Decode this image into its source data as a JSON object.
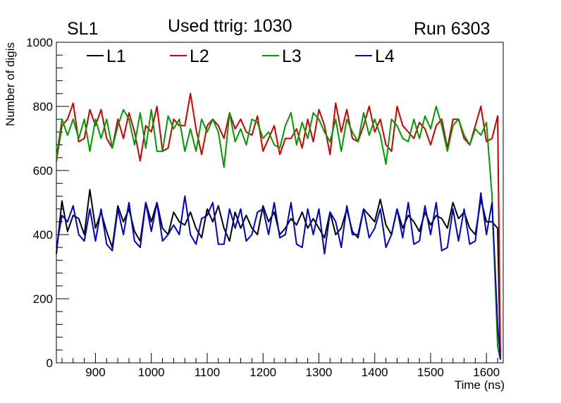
{
  "header": {
    "left": "SL1",
    "center": "Used ttrig: 1030",
    "right": "Run 6303"
  },
  "chart_data": {
    "type": "line",
    "title": "Used ttrig: 1030",
    "xlabel": "Time (ns)",
    "ylabel": "Number of digis",
    "xlim": [
      830,
      1630
    ],
    "ylim": [
      0,
      1000
    ],
    "xticks": [
      900,
      1000,
      1100,
      1200,
      1300,
      1400,
      1500,
      1600
    ],
    "yticks": [
      0,
      200,
      400,
      600,
      800,
      1000
    ],
    "legend_position": "top",
    "grid": false,
    "x": [
      830,
      840,
      850,
      860,
      870,
      880,
      890,
      900,
      910,
      920,
      930,
      940,
      950,
      960,
      970,
      980,
      990,
      1000,
      1010,
      1020,
      1030,
      1040,
      1050,
      1060,
      1070,
      1080,
      1090,
      1100,
      1110,
      1120,
      1130,
      1140,
      1150,
      1160,
      1170,
      1180,
      1190,
      1200,
      1210,
      1220,
      1230,
      1240,
      1250,
      1260,
      1270,
      1280,
      1290,
      1300,
      1310,
      1320,
      1330,
      1340,
      1350,
      1360,
      1370,
      1380,
      1390,
      1400,
      1410,
      1420,
      1430,
      1440,
      1450,
      1460,
      1470,
      1480,
      1490,
      1500,
      1510,
      1520,
      1530,
      1540,
      1550,
      1560,
      1570,
      1580,
      1590,
      1600,
      1610,
      1620,
      1625
    ],
    "series": [
      {
        "name": "L1",
        "color": "#000000",
        "values": [
          340,
          505,
          410,
          460,
          450,
          400,
          540,
          420,
          470,
          410,
          360,
          490,
          440,
          480,
          410,
          380,
          500,
          440,
          500,
          420,
          400,
          470,
          440,
          430,
          470,
          420,
          390,
          480,
          440,
          490,
          420,
          380,
          470,
          420,
          460,
          420,
          400,
          490,
          440,
          470,
          400,
          420,
          450,
          430,
          470,
          420,
          450,
          420,
          390,
          470,
          400,
          420,
          480,
          410,
          390,
          480,
          460,
          440,
          510,
          430,
          400,
          480,
          420,
          460,
          440,
          410,
          470,
          430,
          460,
          450,
          420,
          500,
          450,
          470,
          420,
          400,
          510,
          440,
          440,
          420,
          10
        ]
      },
      {
        "name": "L2",
        "color": "#cc0000",
        "values": [
          630,
          740,
          760,
          810,
          690,
          700,
          790,
          740,
          790,
          700,
          670,
          760,
          700,
          780,
          720,
          630,
          740,
          720,
          800,
          660,
          670,
          760,
          740,
          740,
          840,
          730,
          650,
          740,
          760,
          740,
          700,
          780,
          730,
          760,
          720,
          710,
          770,
          660,
          700,
          740,
          650,
          700,
          700,
          730,
          670,
          760,
          690,
          790,
          740,
          650,
          810,
          720,
          790,
          700,
          690,
          740,
          800,
          720,
          760,
          680,
          660,
          800,
          740,
          720,
          700,
          750,
          730,
          680,
          740,
          760,
          670,
          760,
          760,
          700,
          680,
          740,
          800,
          690,
          700,
          770,
          20
        ]
      },
      {
        "name": "L3",
        "color": "#009900",
        "values": [
          640,
          760,
          710,
          760,
          700,
          760,
          660,
          760,
          700,
          760,
          670,
          740,
          790,
          760,
          680,
          780,
          670,
          790,
          660,
          660,
          770,
          730,
          760,
          660,
          730,
          660,
          760,
          720,
          760,
          720,
          610,
          780,
          690,
          730,
          680,
          760,
          750,
          700,
          720,
          680,
          670,
          740,
          780,
          680,
          750,
          700,
          780,
          760,
          720,
          690,
          760,
          660,
          760,
          720,
          690,
          780,
          710,
          760,
          710,
          620,
          760,
          740,
          700,
          690,
          760,
          700,
          770,
          730,
          800,
          740,
          660,
          740,
          760,
          710,
          680,
          730,
          710,
          750,
          520,
          50,
          10
        ]
      },
      {
        "name": "L4",
        "color": "#0000cc",
        "values": [
          360,
          460,
          440,
          490,
          400,
          380,
          480,
          380,
          480,
          370,
          350,
          480,
          400,
          500,
          380,
          360,
          500,
          410,
          500,
          380,
          400,
          430,
          400,
          520,
          400,
          370,
          450,
          460,
          500,
          370,
          370,
          480,
          420,
          480,
          380,
          400,
          470,
          480,
          400,
          500,
          390,
          400,
          500,
          370,
          360,
          480,
          400,
          480,
          340,
          470,
          440,
          360,
          490,
          400,
          400,
          480,
          390,
          420,
          480,
          360,
          400,
          480,
          390,
          500,
          370,
          380,
          490,
          400,
          500,
          350,
          360,
          480,
          380,
          480,
          370,
          380,
          530,
          400,
          500,
          120,
          10
        ]
      }
    ]
  }
}
